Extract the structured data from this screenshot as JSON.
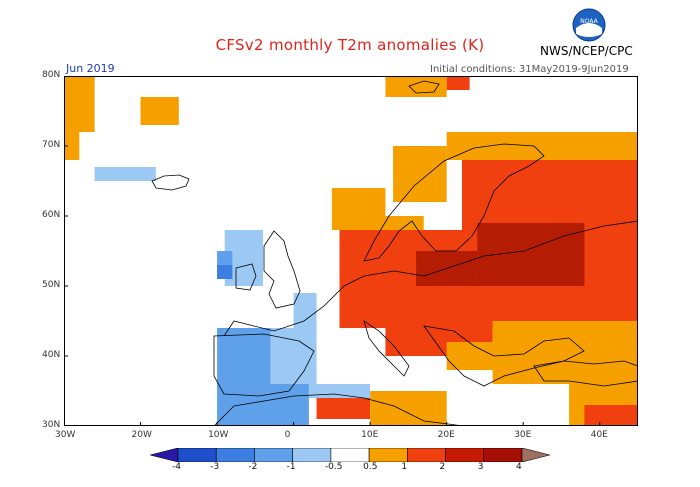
{
  "header": {
    "title": "CFSv2 monthly T2m anomalies (K)",
    "agency": "NWS/NCEP/CPC",
    "logo_text": "NOAA",
    "month": "Jun 2019",
    "initial_conditions": "Initial conditions: 31May2019-9Jun2019"
  },
  "map": {
    "lon_range": [
      -30,
      45
    ],
    "lat_range": [
      30,
      80
    ],
    "lat_labels": [
      "80N",
      "70N",
      "60N",
      "50N",
      "40N",
      "30N"
    ],
    "lon_labels": [
      "30W",
      "20W",
      "10W",
      "0",
      "10E",
      "20E",
      "30E",
      "40E"
    ],
    "regions": [
      {
        "anomaly": 1.0,
        "lon": [
          -30,
          -26
        ],
        "lat": [
          72,
          80
        ]
      },
      {
        "anomaly": 0.5,
        "lon": [
          -30,
          -28
        ],
        "lat": [
          68,
          72
        ]
      },
      {
        "anomaly": -0.5,
        "lon": [
          -26,
          -18
        ],
        "lat": [
          65,
          67
        ]
      },
      {
        "anomaly": 1.0,
        "lon": [
          -20,
          -15
        ],
        "lat": [
          73,
          77
        ]
      },
      {
        "anomaly": 1.0,
        "lon": [
          12,
          20
        ],
        "lat": [
          77,
          80
        ]
      },
      {
        "anomaly": 2.0,
        "lon": [
          20,
          23
        ],
        "lat": [
          78,
          80
        ]
      },
      {
        "anomaly": 1.0,
        "lon": [
          13,
          20
        ],
        "lat": [
          62,
          70
        ]
      },
      {
        "anomaly": 1.0,
        "lon": [
          5,
          12
        ],
        "lat": [
          58,
          64
        ]
      },
      {
        "anomaly": 1.0,
        "lon": [
          12,
          17
        ],
        "lat": [
          55,
          60
        ]
      },
      {
        "anomaly": 2.0,
        "lon": [
          22,
          45
        ],
        "lat": [
          58,
          68
        ]
      },
      {
        "anomaly": 1.0,
        "lon": [
          20,
          45
        ],
        "lat": [
          68,
          72
        ]
      },
      {
        "anomaly": 2.0,
        "lon": [
          6,
          45
        ],
        "lat": [
          44,
          58
        ]
      },
      {
        "anomaly": 3.0,
        "lon": [
          16,
          24
        ],
        "lat": [
          50,
          55
        ]
      },
      {
        "anomaly": 3.0,
        "lon": [
          24,
          38
        ],
        "lat": [
          50,
          59
        ]
      },
      {
        "anomaly": 2.0,
        "lon": [
          12,
          26
        ],
        "lat": [
          40,
          45
        ]
      },
      {
        "anomaly": 1.0,
        "lon": [
          20,
          30
        ],
        "lat": [
          38,
          42
        ]
      },
      {
        "anomaly": 1.0,
        "lon": [
          26,
          45
        ],
        "lat": [
          36,
          45
        ]
      },
      {
        "anomaly": 1.0,
        "lon": [
          36,
          45
        ],
        "lat": [
          30,
          36
        ]
      },
      {
        "anomaly": 2.0,
        "lon": [
          38,
          45
        ],
        "lat": [
          30,
          33
        ]
      },
      {
        "anomaly": 2.0,
        "lon": [
          3,
          10
        ],
        "lat": [
          31,
          34
        ]
      },
      {
        "anomaly": 1.0,
        "lon": [
          10,
          20
        ],
        "lat": [
          30,
          35
        ]
      },
      {
        "anomaly": -0.5,
        "lon": [
          -9,
          -4
        ],
        "lat": [
          50,
          58
        ]
      },
      {
        "anomaly": -1.0,
        "lon": [
          -10,
          -8
        ],
        "lat": [
          51,
          55
        ]
      },
      {
        "anomaly": -2.0,
        "lon": [
          -10,
          -8
        ],
        "lat": [
          51,
          53
        ]
      },
      {
        "anomaly": -1.0,
        "lon": [
          -10,
          -3
        ],
        "lat": [
          36,
          44
        ]
      },
      {
        "anomaly": -0.5,
        "lon": [
          -3,
          3
        ],
        "lat": [
          36,
          44
        ]
      },
      {
        "anomaly": -0.5,
        "lon": [
          0,
          3
        ],
        "lat": [
          44,
          49
        ]
      },
      {
        "anomaly": -1.0,
        "lon": [
          -10,
          2
        ],
        "lat": [
          30,
          36
        ]
      },
      {
        "anomaly": -0.5,
        "lon": [
          2,
          10
        ],
        "lat": [
          34,
          36
        ]
      }
    ],
    "colorbar": {
      "labels": [
        "-4",
        "-3",
        "-2",
        "-1",
        "-0.5",
        "0.5",
        "1",
        "2",
        "3",
        "4"
      ],
      "colors": [
        "#2a19a8",
        "#1f4fcc",
        "#3d7fe0",
        "#5fa0ea",
        "#9cc8f4",
        "#ffffff",
        "#f6a000",
        "#f04010",
        "#c81a00",
        "#a50f06",
        "#a07060"
      ]
    }
  }
}
